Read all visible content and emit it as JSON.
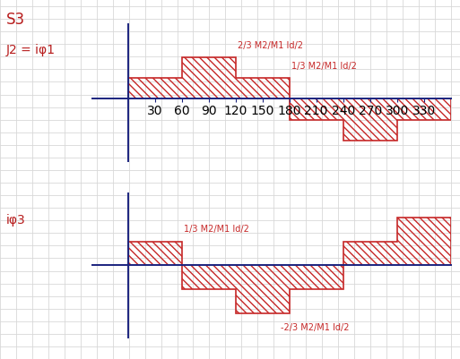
{
  "chart_data": [
    {
      "type": "step",
      "title": "S3",
      "ylabel": "J2 = iφ1",
      "bins": [
        0,
        60,
        120,
        180,
        240,
        300,
        360
      ],
      "values": [
        0.333,
        0.667,
        0.333,
        -0.333,
        -0.667,
        -0.333
      ],
      "color": "#c62828",
      "xlim": [
        -40,
        360
      ],
      "ylim": [
        -1.0,
        1.2
      ],
      "xticks": [
        30,
        60,
        90,
        120,
        150,
        180,
        210,
        240,
        270,
        300,
        330
      ],
      "tick_labels": "x",
      "annotations": [
        {
          "text": "2/3 M2/M1 Id/2",
          "segment": 1
        },
        {
          "text": "1/3 M2/M1 Id/2",
          "segment": 2
        }
      ]
    },
    {
      "type": "step",
      "ylabel": "iφ3",
      "bins": [
        0,
        60,
        120,
        180,
        240,
        300,
        360
      ],
      "values": [
        0.333,
        -0.333,
        -0.667,
        -0.333,
        0.333,
        0.667
      ],
      "color": "#c62828",
      "xlim": [
        -40,
        360
      ],
      "ylim": [
        -1.0,
        1.0
      ],
      "tick_labels": false,
      "annotations": [
        {
          "text": "1/3 M2/M1 Id/2",
          "segment": 0
        },
        {
          "text": "-2/3 M2/M1 Id/2",
          "segment": 2
        }
      ]
    }
  ]
}
